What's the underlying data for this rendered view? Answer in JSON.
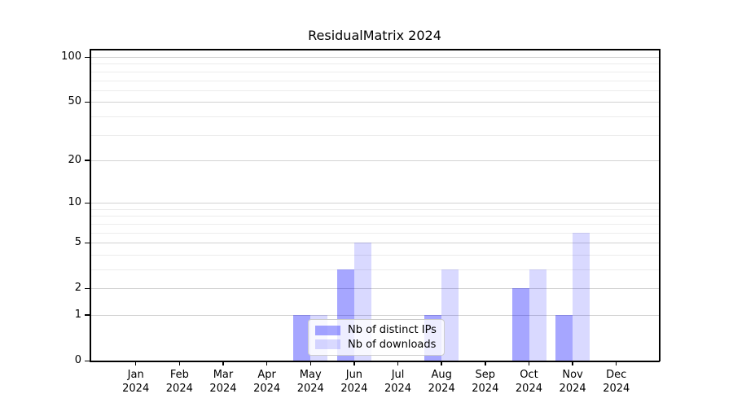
{
  "title": "ResidualMatrix 2024",
  "chart_data": {
    "type": "bar",
    "title": "ResidualMatrix 2024",
    "categories": [
      "Jan 2024",
      "Feb 2024",
      "Mar 2024",
      "Apr 2024",
      "May 2024",
      "Jun 2024",
      "Jul 2024",
      "Aug 2024",
      "Sep 2024",
      "Oct 2024",
      "Nov 2024",
      "Dec 2024"
    ],
    "series": [
      {
        "name": "Nb of distinct IPs",
        "color": "rgba(0,0,255,0.35)",
        "values": [
          0,
          0,
          0,
          0,
          1,
          3,
          0,
          1,
          0,
          2,
          1,
          0
        ]
      },
      {
        "name": "Nb of downloads",
        "color": "rgba(0,0,255,0.15)",
        "values": [
          0,
          0,
          0,
          0,
          1,
          5,
          0,
          3,
          0,
          3,
          6,
          0
        ]
      }
    ],
    "xlabel": "",
    "ylabel": "",
    "y_scale": "log(value+1)",
    "ylim": [
      0,
      113
    ],
    "y_major_ticks": [
      0,
      1,
      2,
      5,
      10,
      20,
      50,
      100
    ],
    "y_minor_ticks": [
      3,
      4,
      6,
      7,
      8,
      9,
      30,
      40,
      60,
      70,
      80,
      90
    ],
    "grid": "horizontal",
    "legend_position": "lower center, inside plot",
    "colors": {
      "bar_distinct_ips": "rgba(0,0,255,0.35)",
      "bar_downloads": "rgba(0,0,255,0.15)",
      "gridline_major": "#d2d2d2",
      "gridline_minor": "#ececec",
      "axis": "#000000",
      "background": "#ffffff"
    }
  }
}
